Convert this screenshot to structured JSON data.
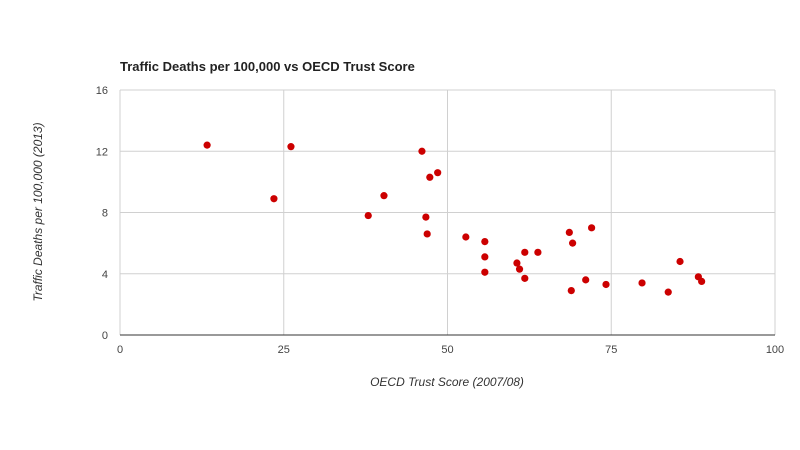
{
  "chart_data": {
    "type": "scatter",
    "title": "Traffic Deaths per 100,000 vs OECD Trust Score",
    "xlabel": "OECD Trust Score (2007/08)",
    "ylabel": "Traffic Deaths per 100,000 (2013)",
    "xlim": [
      0,
      100
    ],
    "ylim": [
      0,
      16
    ],
    "x_ticks": [
      "0",
      "25",
      "50",
      "75",
      "100"
    ],
    "y_ticks": [
      "0",
      "4",
      "8",
      "12",
      "16"
    ],
    "grid": true,
    "legend": "none",
    "point_color": "#cc0000",
    "points": [
      {
        "x": 13.3,
        "y": 12.4
      },
      {
        "x": 23.5,
        "y": 8.9
      },
      {
        "x": 26.1,
        "y": 12.3
      },
      {
        "x": 37.9,
        "y": 7.8
      },
      {
        "x": 40.3,
        "y": 9.1
      },
      {
        "x": 46.1,
        "y": 12.0
      },
      {
        "x": 46.7,
        "y": 7.7
      },
      {
        "x": 46.9,
        "y": 6.6
      },
      {
        "x": 47.3,
        "y": 10.3
      },
      {
        "x": 48.5,
        "y": 10.6
      },
      {
        "x": 52.8,
        "y": 6.4
      },
      {
        "x": 55.7,
        "y": 6.1
      },
      {
        "x": 55.7,
        "y": 5.1
      },
      {
        "x": 55.7,
        "y": 4.1
      },
      {
        "x": 60.6,
        "y": 4.7
      },
      {
        "x": 61.0,
        "y": 4.3
      },
      {
        "x": 61.8,
        "y": 5.4
      },
      {
        "x": 61.8,
        "y": 3.7
      },
      {
        "x": 63.8,
        "y": 5.4
      },
      {
        "x": 68.6,
        "y": 6.7
      },
      {
        "x": 68.9,
        "y": 2.9
      },
      {
        "x": 69.1,
        "y": 6.0
      },
      {
        "x": 71.1,
        "y": 3.6
      },
      {
        "x": 72.0,
        "y": 7.0
      },
      {
        "x": 74.2,
        "y": 3.3
      },
      {
        "x": 79.7,
        "y": 3.4
      },
      {
        "x": 83.7,
        "y": 2.8
      },
      {
        "x": 85.5,
        "y": 4.8
      },
      {
        "x": 88.3,
        "y": 3.8
      },
      {
        "x": 88.8,
        "y": 3.5
      }
    ]
  }
}
